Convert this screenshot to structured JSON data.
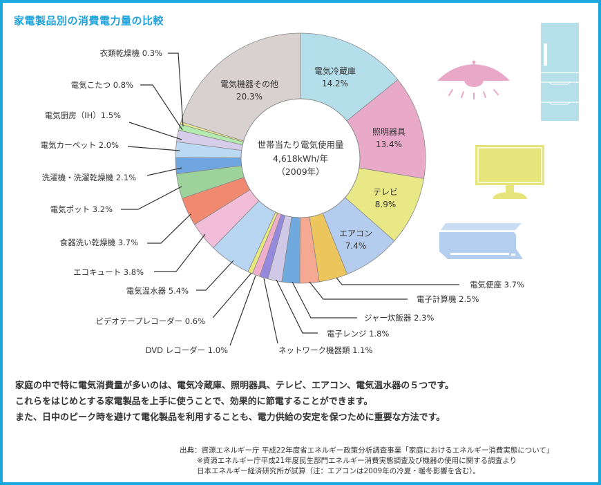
{
  "title": "家電製品別の消費電力量の比較",
  "chart_data": {
    "type": "pie",
    "subtype": "donut",
    "title": "家電製品別の消費電力量の比較",
    "unit": "%",
    "start": "12 o'clock, clockwise",
    "center_label": {
      "line1": "世帯当たり電気使用量",
      "line2": "4,618kWh/年",
      "line3": "（2009年）"
    },
    "categories": [
      "電気冷蔵庫",
      "照明器具",
      "テレビ",
      "エアコン",
      "電気便座",
      "電子計算機",
      "ジャー炊飯器",
      "電子レンジ",
      "ネットワーク機器類",
      "DVD レコーダー",
      "ビデオテープレコーダー",
      "電気温水器",
      "エコキュート",
      "食器洗い乾燥機",
      "電気ポット",
      "洗濯機・洗濯乾燥機",
      "電気カーペット",
      "電気厨房（IH）",
      "電気こたつ",
      "衣類乾燥機",
      "電気機器その他"
    ],
    "values": [
      14.2,
      13.4,
      8.9,
      7.4,
      3.7,
      2.5,
      2.3,
      1.8,
      1.1,
      1.0,
      0.6,
      5.4,
      3.8,
      3.7,
      3.2,
      2.1,
      2.0,
      1.5,
      0.8,
      0.3,
      20.3
    ],
    "display_values": [
      "14.2%",
      "13.4%",
      "8.9%",
      "7.4%",
      "3.7%",
      "2.5%",
      "2.3%",
      "1.8%",
      "1.1%",
      "1.0%",
      "0.6%",
      "5.4%",
      "3.8%",
      "3.7%",
      "3.2%",
      "2.1%",
      "2.0%",
      "1.5%",
      "0.8%",
      "0.3%",
      "20.3%"
    ],
    "colors": [
      "#b3deea",
      "#e9a9c9",
      "#e8e887",
      "#b4cdee",
      "#ecc65c",
      "#f5a892",
      "#6fa9dd",
      "#cfc9e7",
      "#9489dd",
      "#eeaecc",
      "#e7ea7a",
      "#b8d6f2",
      "#f1bdd8",
      "#f0896f",
      "#9dd29b",
      "#6fa6e0",
      "#bcd9f3",
      "#d5cdea",
      "#b2eab0",
      "#eded8c",
      "#d9d0d0"
    ],
    "legend_position": "leader-line labels around donut"
  },
  "illustrations": {
    "lamp_color": "#eaa8c8",
    "refrigerator_color": "#b5e0ea",
    "tv_color": "#e5e57c",
    "air_conditioner_color": "#b3ceee",
    "air_conditioner_top_color": "#c9dcf3"
  },
  "body": {
    "lines": [
      "家庭の中で特に電気消費量が多いのは、電気冷蔵庫、照明器具、テレビ、エアコン、電気温水器の５つです。",
      "これらをはじめとする家電製品を上手に使うことで、効果的に節電することができます。",
      "また、日中のピーク時を避けて電化製品を利用することも、電力供給の安定を保つために重要な方法です。"
    ]
  },
  "source": {
    "lines": [
      "出典：資源エネルギー庁 平成22年度省エネルギー政策分析調査事業「家庭におけるエネルギー消費実態について」",
      "※資源エネルギー庁平成21年度民生部門エネルギー消費実態調査及び機器の使用に関する調査より",
      "日本エネルギー経済研究所が試算（注：エアコンは2009年の冷夏・暖冬影響を含む）。"
    ]
  }
}
